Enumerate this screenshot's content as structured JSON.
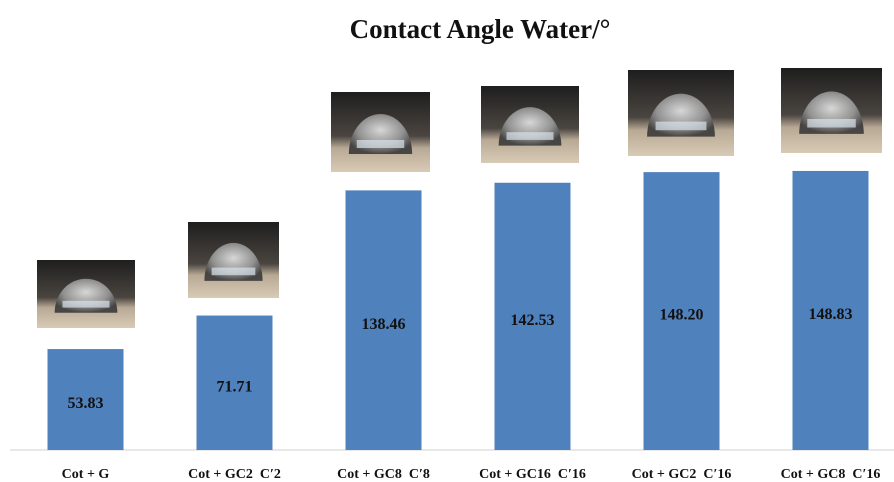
{
  "chart_data": {
    "type": "bar",
    "title": "Contact Angle Water/°",
    "categories": [
      "Cot + G",
      "Cot + GC2  C′2",
      "Cot + GC8  C′8",
      "Cot + GC16  C′16",
      "Cot + GC2  C′16",
      "Cot + GC8  C′16"
    ],
    "values": [
      53.83,
      71.71,
      138.46,
      142.53,
      148.2,
      148.83
    ],
    "value_labels": [
      "53.83",
      "71.71",
      "138.46",
      "142.53",
      "148.20",
      "148.83"
    ],
    "color": "#4f81bd",
    "ylim": [
      0,
      240
    ]
  }
}
